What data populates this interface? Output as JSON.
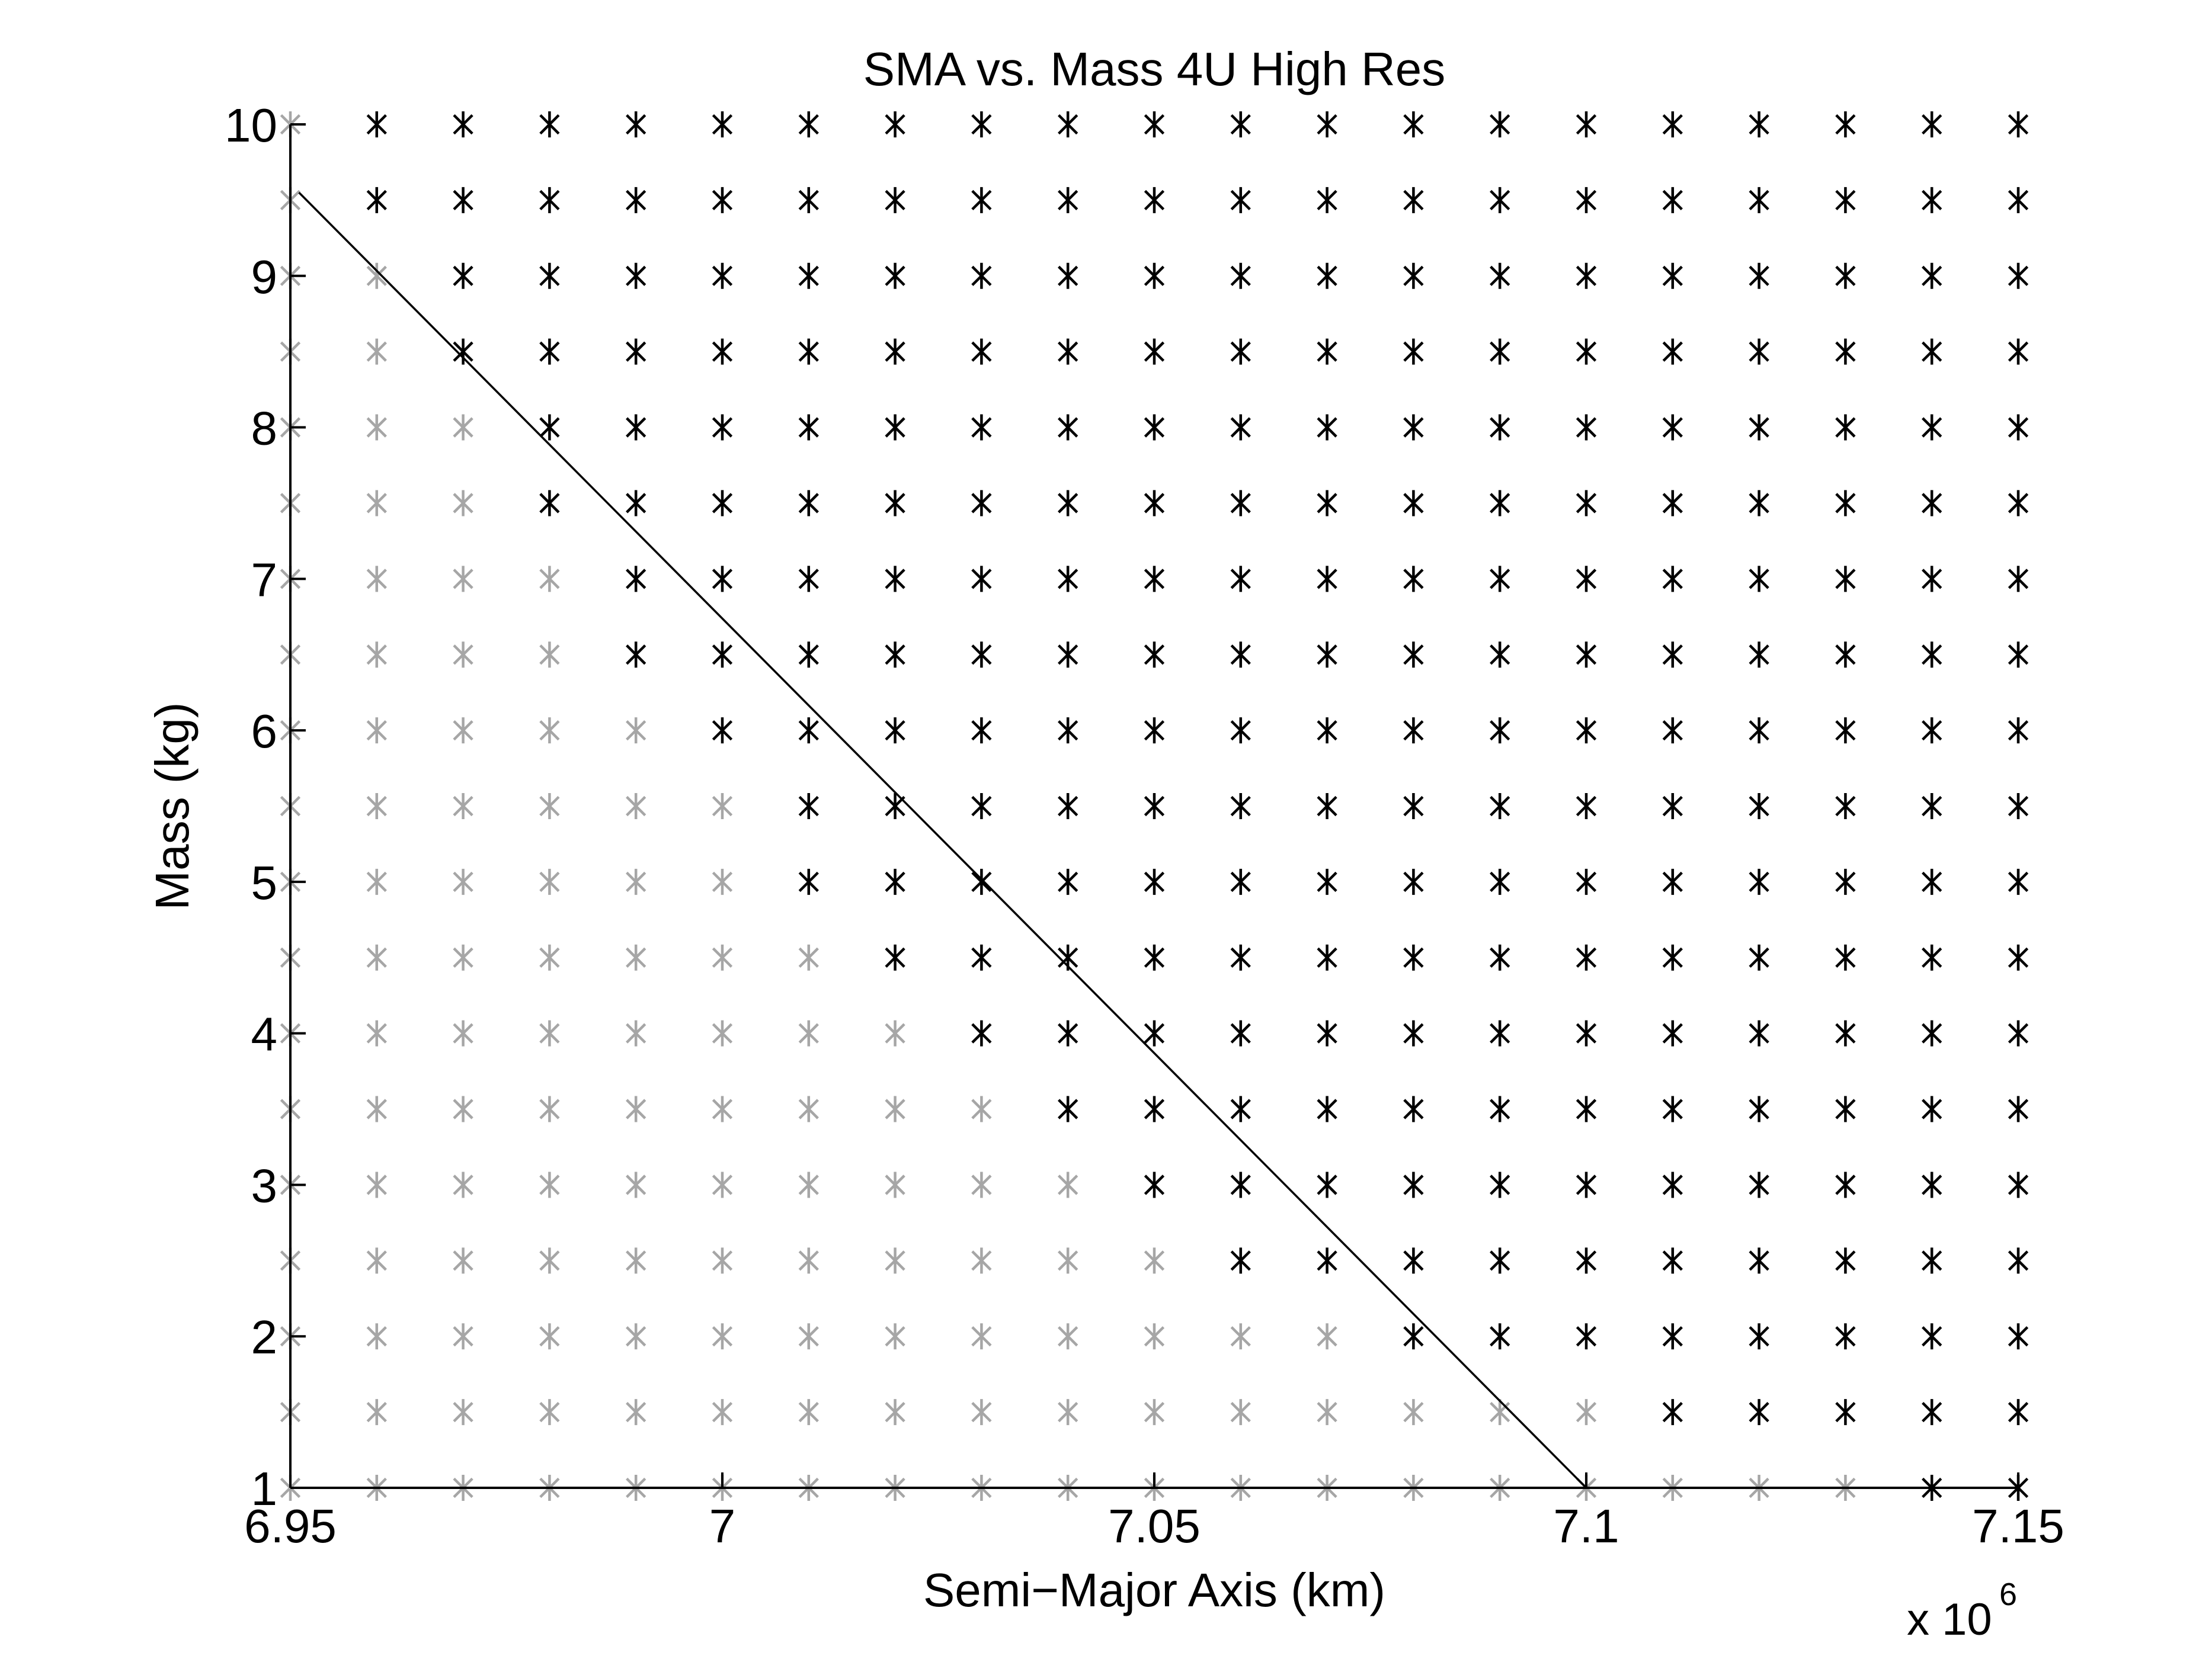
{
  "chart_data": {
    "type": "scatter",
    "title": "SMA vs. Mass 4U High Res",
    "xlabel": "Semi−Major Axis (km)",
    "ylabel": "Mass (kg)",
    "x_exponent_base": "x 10",
    "x_exponent_power": "6",
    "xlim": [
      6950000,
      7150000
    ],
    "ylim": [
      1,
      10
    ],
    "grid": false,
    "x_ticks": [
      6950000,
      7000000,
      7050000,
      7100000,
      7150000
    ],
    "x_tick_labels": [
      "6.95",
      "7",
      "7.05",
      "7.1",
      "7.15"
    ],
    "y_ticks": [
      1,
      2,
      3,
      4,
      5,
      6,
      7,
      8,
      9,
      10
    ],
    "y_tick_labels": [
      "1",
      "2",
      "3",
      "4",
      "5",
      "6",
      "7",
      "8",
      "9",
      "10"
    ],
    "grid_x_values": [
      6950000,
      6960000,
      6970000,
      6980000,
      6990000,
      7000000,
      7010000,
      7020000,
      7030000,
      7040000,
      7050000,
      7060000,
      7070000,
      7080000,
      7090000,
      7100000,
      7110000,
      7120000,
      7130000,
      7140000,
      7150000
    ],
    "grid_y_values": [
      1,
      1.5,
      2,
      2.5,
      3,
      3.5,
      4,
      4.5,
      5,
      5.5,
      6,
      6.5,
      7,
      7.5,
      8,
      8.5,
      9,
      9.5,
      10
    ],
    "marker": "asterisk",
    "series": [
      {
        "color": "#a6a6a6",
        "black_start_index_by_row": [
          21,
          21,
          21,
          21,
          21,
          21,
          21,
          21,
          21,
          21,
          21,
          21,
          21,
          21,
          21,
          21,
          21,
          21,
          21
        ],
        "comment_free": true
      }
    ],
    "black_color": "#000000",
    "black_start_index_by_row": [
      19,
      16,
      13,
      11,
      10,
      9,
      8,
      7,
      6,
      6,
      5,
      4,
      4,
      3,
      3,
      2,
      2,
      1,
      1
    ],
    "line": {
      "x": [
        6951000,
        7100000
      ],
      "y": [
        9.55,
        1
      ],
      "color": "#000000"
    }
  }
}
